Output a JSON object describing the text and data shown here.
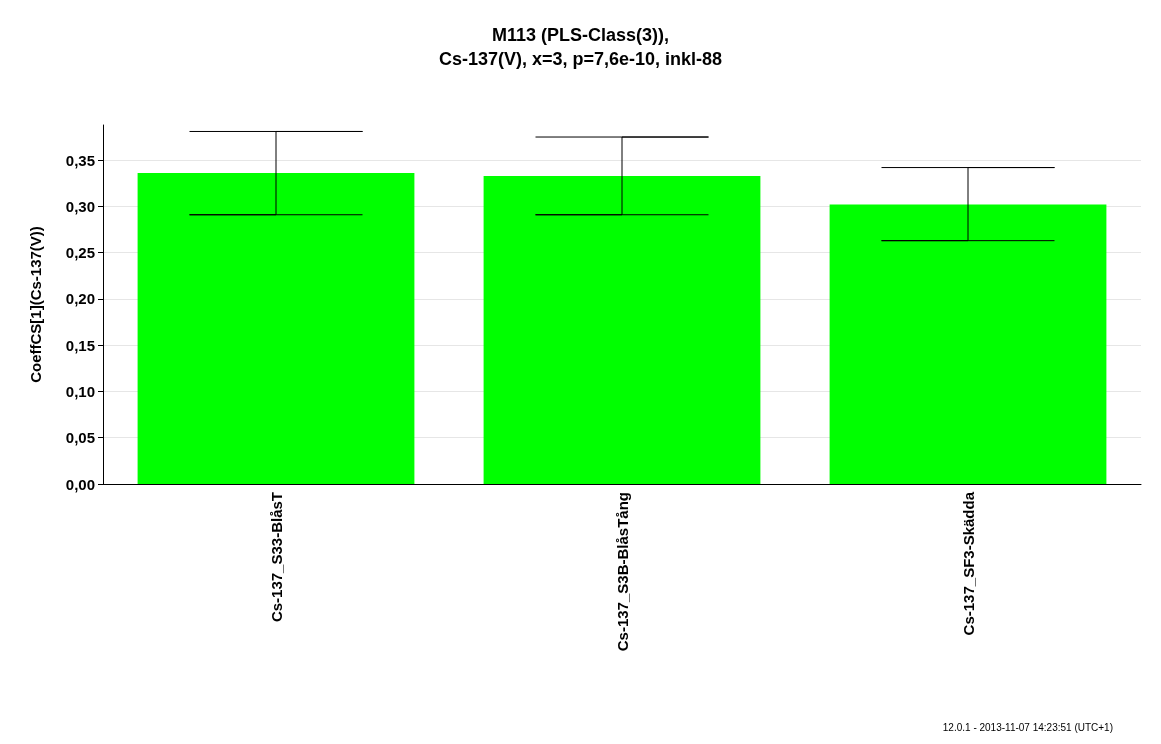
{
  "chart_data": {
    "type": "bar",
    "title": "M113 (PLS-Class(3)),\nCs-137(V), x=3, p=7,6e-10, inkl-88",
    "ylabel": "CoeffCS[1](Cs-137(V))",
    "categories": [
      "Cs-137_S33-BlåsT",
      "Cs-137_S3B-BlåsTång",
      "Cs-137_SF3-Skädda"
    ],
    "values": [
      0.336,
      0.333,
      0.302
    ],
    "color": "#00ff00",
    "errors": [
      [
        0.291,
        0.381
      ],
      [
        0.291,
        0.375
      ],
      [
        0.263,
        0.342
      ]
    ],
    "ylim": [
      0,
      0.388
    ],
    "yticks": [
      {
        "value": 0,
        "label": "0,00"
      },
      {
        "value": 0.05,
        "label": "0,05"
      },
      {
        "value": 0.1,
        "label": "0,10"
      },
      {
        "value": 0.15,
        "label": "0,15"
      },
      {
        "value": 0.2,
        "label": "0,20"
      },
      {
        "value": 0.25,
        "label": "0,25"
      },
      {
        "value": 0.3,
        "label": "0,30"
      },
      {
        "value": 0.35,
        "label": "0,35"
      }
    ],
    "grid": "y",
    "annotations": [
      "12.0.1 - 2013-11-07 14:23:51 (UTC+1)"
    ]
  }
}
